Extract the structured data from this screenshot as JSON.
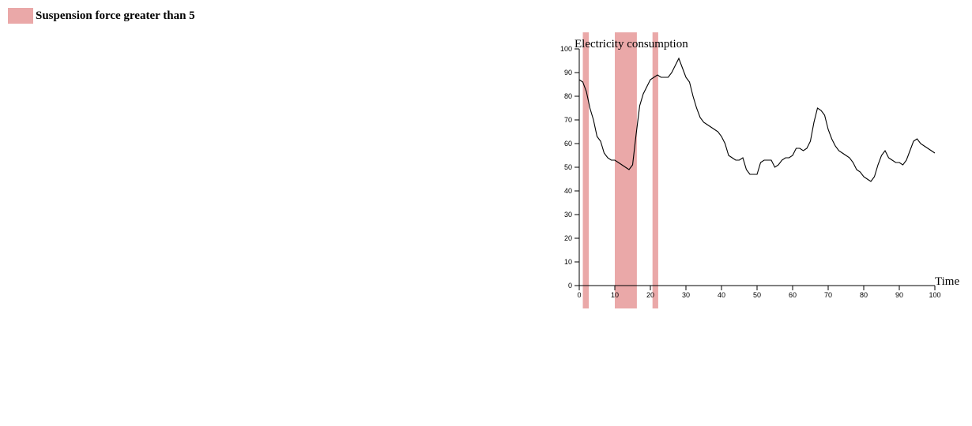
{
  "legend": {
    "label": "Suspension force greater than 5",
    "color": "#eaa8a8"
  },
  "chart_data": {
    "type": "line",
    "xlabel": "Time",
    "ylabel": "Electricity consumption",
    "xlim": [
      0,
      100
    ],
    "ylim": [
      0,
      100
    ],
    "x_ticks": [
      0,
      10,
      20,
      30,
      40,
      50,
      60,
      70,
      80,
      90,
      100
    ],
    "y_ticks": [
      0,
      10,
      20,
      30,
      40,
      50,
      60,
      70,
      80,
      90,
      100
    ],
    "grid": false,
    "line_color": "#000000",
    "highlight_color": "#eaa8a8",
    "highlight_ranges": [
      [
        1,
        2.7
      ],
      [
        10,
        16.2
      ],
      [
        20.6,
        22.2
      ]
    ],
    "series": [
      {
        "x": [
          0,
          1,
          2,
          3,
          4,
          5,
          6,
          7,
          8,
          9,
          10,
          11,
          12,
          13,
          14,
          15,
          16,
          17,
          18,
          19,
          20,
          21,
          22,
          23,
          24,
          25,
          26,
          27,
          28,
          29,
          30,
          31,
          32,
          33,
          34,
          35,
          36,
          37,
          38,
          39,
          40,
          41,
          42,
          43,
          44,
          45,
          46,
          47,
          48,
          49,
          50,
          51,
          52,
          53,
          54,
          55,
          56,
          57,
          58,
          59,
          60,
          61,
          62,
          63,
          64,
          65,
          66,
          67,
          68,
          69,
          70,
          71,
          72,
          73,
          74,
          75,
          76,
          77,
          78,
          79,
          80,
          81,
          82,
          83,
          84,
          85,
          86,
          87,
          88,
          89,
          90,
          91,
          92,
          93,
          94,
          95,
          96,
          97,
          98,
          99,
          100
        ],
        "y": [
          87,
          86,
          82,
          75,
          70,
          63,
          61,
          56,
          54,
          53,
          53,
          52,
          51,
          50,
          49,
          51,
          64,
          76,
          81,
          84,
          87,
          88,
          89,
          88,
          88,
          88,
          90,
          93,
          96,
          92,
          88,
          86,
          80,
          75,
          71,
          69,
          68,
          67,
          66,
          65,
          63,
          60,
          55,
          54,
          53,
          53,
          54,
          49,
          47,
          47,
          47,
          52,
          53,
          53,
          53,
          50,
          51,
          53,
          54,
          54,
          55,
          58,
          58,
          57,
          58,
          61,
          69,
          75,
          74,
          72,
          66,
          62,
          59,
          57,
          56,
          55,
          54,
          52,
          49,
          48,
          46,
          45,
          44,
          46,
          51,
          55,
          57,
          54,
          53,
          52,
          52,
          51,
          53,
          57,
          61,
          62,
          60,
          59,
          58,
          57,
          56
        ]
      }
    ]
  }
}
